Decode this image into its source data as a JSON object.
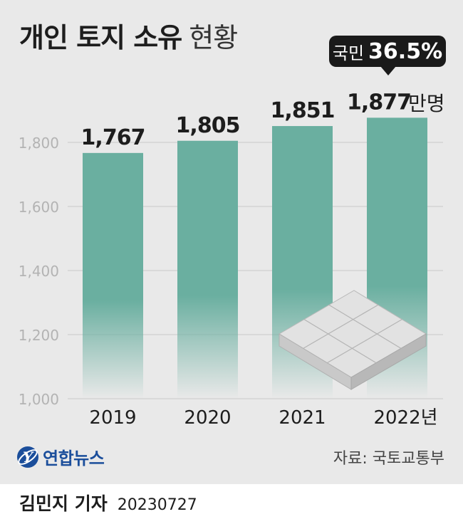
{
  "title": {
    "main": "개인 토지 소유",
    "sub": "현황"
  },
  "callout": {
    "label": "국민",
    "value": "36.5%"
  },
  "chart_data": {
    "type": "bar",
    "categories": [
      "2019",
      "2020",
      "2021",
      "2022"
    ],
    "values": [
      1767,
      1805,
      1851,
      1877
    ],
    "value_labels": [
      "1,767",
      "1,805",
      "1,851",
      "1,877"
    ],
    "category_labels": [
      "2019",
      "2020",
      "2021",
      "2022년"
    ],
    "ylim": [
      1000,
      1900
    ],
    "yticks": [
      1000,
      1200,
      1400,
      1600,
      1800
    ],
    "ytick_labels": [
      "1,000",
      "1,200",
      "1,400",
      "1,600",
      "1,800"
    ],
    "unit": "만명",
    "grid": true,
    "bar_color": "#6aafa0"
  },
  "source": "자료: 국토교통부",
  "logo_text": "연합뉴스",
  "credit": {
    "name": "김민지 기자",
    "date": "20230727"
  }
}
